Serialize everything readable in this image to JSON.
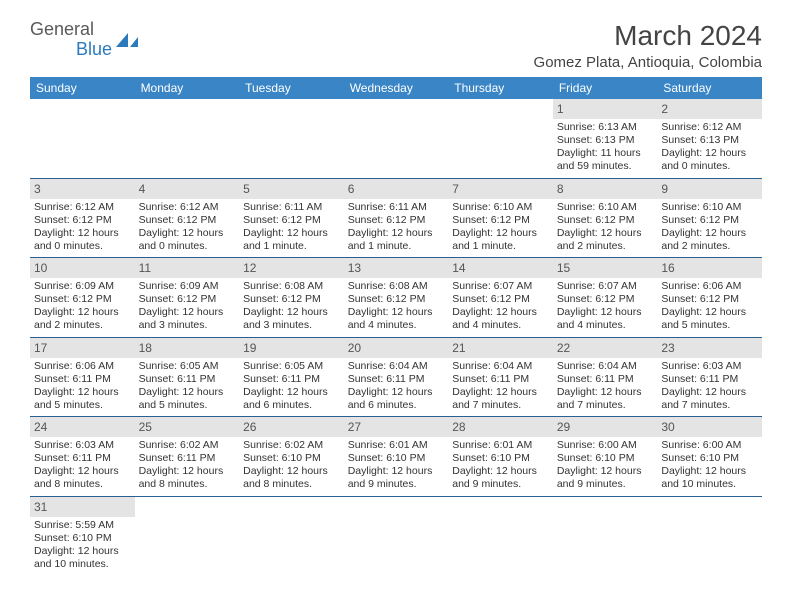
{
  "logo": {
    "general": "General",
    "blue": "Blue"
  },
  "title": "March 2024",
  "location": "Gomez Plata, Antioquia, Colombia",
  "colors": {
    "header_bg": "#3a85c6",
    "header_text": "#ffffff",
    "daynum_bg": "#e4e4e4",
    "cell_border": "#2b5f8f",
    "logo_gray": "#5a5a5a",
    "logo_blue": "#2b7bbc"
  },
  "dayNames": [
    "Sunday",
    "Monday",
    "Tuesday",
    "Wednesday",
    "Thursday",
    "Friday",
    "Saturday"
  ],
  "weeks": [
    [
      null,
      null,
      null,
      null,
      null,
      {
        "n": "1",
        "sr": "Sunrise: 6:13 AM",
        "ss": "Sunset: 6:13 PM",
        "dl": "Daylight: 11 hours and 59 minutes."
      },
      {
        "n": "2",
        "sr": "Sunrise: 6:12 AM",
        "ss": "Sunset: 6:13 PM",
        "dl": "Daylight: 12 hours and 0 minutes."
      }
    ],
    [
      {
        "n": "3",
        "sr": "Sunrise: 6:12 AM",
        "ss": "Sunset: 6:12 PM",
        "dl": "Daylight: 12 hours and 0 minutes."
      },
      {
        "n": "4",
        "sr": "Sunrise: 6:12 AM",
        "ss": "Sunset: 6:12 PM",
        "dl": "Daylight: 12 hours and 0 minutes."
      },
      {
        "n": "5",
        "sr": "Sunrise: 6:11 AM",
        "ss": "Sunset: 6:12 PM",
        "dl": "Daylight: 12 hours and 1 minute."
      },
      {
        "n": "6",
        "sr": "Sunrise: 6:11 AM",
        "ss": "Sunset: 6:12 PM",
        "dl": "Daylight: 12 hours and 1 minute."
      },
      {
        "n": "7",
        "sr": "Sunrise: 6:10 AM",
        "ss": "Sunset: 6:12 PM",
        "dl": "Daylight: 12 hours and 1 minute."
      },
      {
        "n": "8",
        "sr": "Sunrise: 6:10 AM",
        "ss": "Sunset: 6:12 PM",
        "dl": "Daylight: 12 hours and 2 minutes."
      },
      {
        "n": "9",
        "sr": "Sunrise: 6:10 AM",
        "ss": "Sunset: 6:12 PM",
        "dl": "Daylight: 12 hours and 2 minutes."
      }
    ],
    [
      {
        "n": "10",
        "sr": "Sunrise: 6:09 AM",
        "ss": "Sunset: 6:12 PM",
        "dl": "Daylight: 12 hours and 2 minutes."
      },
      {
        "n": "11",
        "sr": "Sunrise: 6:09 AM",
        "ss": "Sunset: 6:12 PM",
        "dl": "Daylight: 12 hours and 3 minutes."
      },
      {
        "n": "12",
        "sr": "Sunrise: 6:08 AM",
        "ss": "Sunset: 6:12 PM",
        "dl": "Daylight: 12 hours and 3 minutes."
      },
      {
        "n": "13",
        "sr": "Sunrise: 6:08 AM",
        "ss": "Sunset: 6:12 PM",
        "dl": "Daylight: 12 hours and 4 minutes."
      },
      {
        "n": "14",
        "sr": "Sunrise: 6:07 AM",
        "ss": "Sunset: 6:12 PM",
        "dl": "Daylight: 12 hours and 4 minutes."
      },
      {
        "n": "15",
        "sr": "Sunrise: 6:07 AM",
        "ss": "Sunset: 6:12 PM",
        "dl": "Daylight: 12 hours and 4 minutes."
      },
      {
        "n": "16",
        "sr": "Sunrise: 6:06 AM",
        "ss": "Sunset: 6:12 PM",
        "dl": "Daylight: 12 hours and 5 minutes."
      }
    ],
    [
      {
        "n": "17",
        "sr": "Sunrise: 6:06 AM",
        "ss": "Sunset: 6:11 PM",
        "dl": "Daylight: 12 hours and 5 minutes."
      },
      {
        "n": "18",
        "sr": "Sunrise: 6:05 AM",
        "ss": "Sunset: 6:11 PM",
        "dl": "Daylight: 12 hours and 5 minutes."
      },
      {
        "n": "19",
        "sr": "Sunrise: 6:05 AM",
        "ss": "Sunset: 6:11 PM",
        "dl": "Daylight: 12 hours and 6 minutes."
      },
      {
        "n": "20",
        "sr": "Sunrise: 6:04 AM",
        "ss": "Sunset: 6:11 PM",
        "dl": "Daylight: 12 hours and 6 minutes."
      },
      {
        "n": "21",
        "sr": "Sunrise: 6:04 AM",
        "ss": "Sunset: 6:11 PM",
        "dl": "Daylight: 12 hours and 7 minutes."
      },
      {
        "n": "22",
        "sr": "Sunrise: 6:04 AM",
        "ss": "Sunset: 6:11 PM",
        "dl": "Daylight: 12 hours and 7 minutes."
      },
      {
        "n": "23",
        "sr": "Sunrise: 6:03 AM",
        "ss": "Sunset: 6:11 PM",
        "dl": "Daylight: 12 hours and 7 minutes."
      }
    ],
    [
      {
        "n": "24",
        "sr": "Sunrise: 6:03 AM",
        "ss": "Sunset: 6:11 PM",
        "dl": "Daylight: 12 hours and 8 minutes."
      },
      {
        "n": "25",
        "sr": "Sunrise: 6:02 AM",
        "ss": "Sunset: 6:11 PM",
        "dl": "Daylight: 12 hours and 8 minutes."
      },
      {
        "n": "26",
        "sr": "Sunrise: 6:02 AM",
        "ss": "Sunset: 6:10 PM",
        "dl": "Daylight: 12 hours and 8 minutes."
      },
      {
        "n": "27",
        "sr": "Sunrise: 6:01 AM",
        "ss": "Sunset: 6:10 PM",
        "dl": "Daylight: 12 hours and 9 minutes."
      },
      {
        "n": "28",
        "sr": "Sunrise: 6:01 AM",
        "ss": "Sunset: 6:10 PM",
        "dl": "Daylight: 12 hours and 9 minutes."
      },
      {
        "n": "29",
        "sr": "Sunrise: 6:00 AM",
        "ss": "Sunset: 6:10 PM",
        "dl": "Daylight: 12 hours and 9 minutes."
      },
      {
        "n": "30",
        "sr": "Sunrise: 6:00 AM",
        "ss": "Sunset: 6:10 PM",
        "dl": "Daylight: 12 hours and 10 minutes."
      }
    ],
    [
      {
        "n": "31",
        "sr": "Sunrise: 5:59 AM",
        "ss": "Sunset: 6:10 PM",
        "dl": "Daylight: 12 hours and 10 minutes."
      },
      null,
      null,
      null,
      null,
      null,
      null
    ]
  ]
}
